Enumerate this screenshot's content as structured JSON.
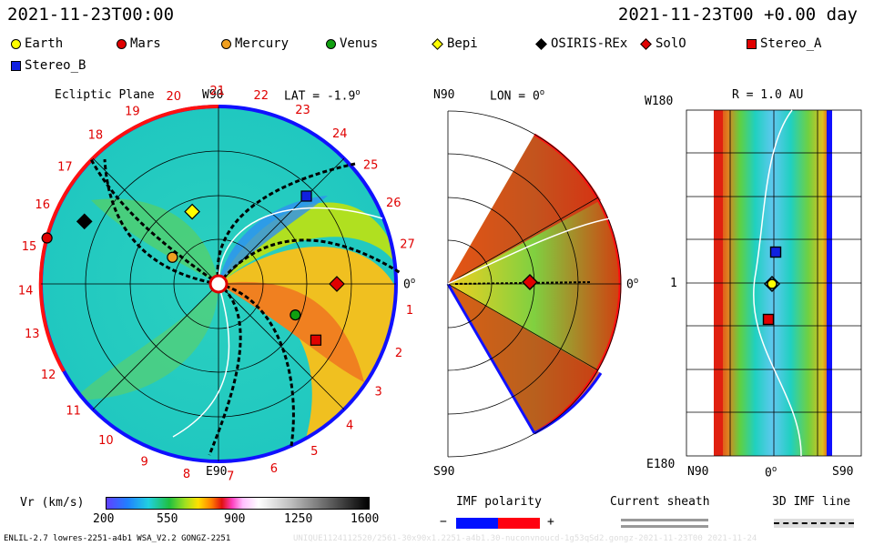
{
  "header": {
    "left_time": "2021-11-23T00:00",
    "right_time": "2021-11-23T00 +0.00 day"
  },
  "legend": [
    {
      "label": "Earth",
      "color": "#ffff00",
      "shape": "circle"
    },
    {
      "label": "Mars",
      "color": "#e00000",
      "shape": "circle"
    },
    {
      "label": "Mercury",
      "color": "#f0a020",
      "shape": "circle"
    },
    {
      "label": "Venus",
      "color": "#10a010",
      "shape": "circle"
    },
    {
      "label": "Bepi",
      "color": "#ffff00",
      "shape": "diamond"
    },
    {
      "label": "OSIRIS-REx",
      "color": "#000000",
      "shape": "diamond"
    },
    {
      "label": "SolO",
      "color": "#e00000",
      "shape": "diamond"
    },
    {
      "label": "Stereo_A",
      "color": "#e00000",
      "shape": "square"
    },
    {
      "label": "Stereo_B",
      "color": "#1020e0",
      "shape": "square"
    }
  ],
  "ecliptic": {
    "title": "Ecliptic Plane",
    "top_label": "W90",
    "bottom_label": "E90",
    "right_label": "0",
    "lat_label": "LAT = -1.9",
    "degree": "o",
    "rotation_numbers": [
      "1",
      "2",
      "3",
      "4",
      "5",
      "6",
      "7",
      "8",
      "9",
      "10",
      "11",
      "12",
      "13",
      "14",
      "15",
      "16",
      "17",
      "18",
      "19",
      "20",
      "21",
      "22",
      "23",
      "24",
      "25",
      "26",
      "27"
    ]
  },
  "meridional": {
    "top_label": "N90",
    "bottom_label": "S90",
    "lon_label": "LON = 0",
    "right_label": "0"
  },
  "radial": {
    "title": "R = 1.0 AU",
    "top_label": "W180",
    "bottom_label": "E180",
    "mid_label": "1",
    "x_labels": [
      "N90",
      "0",
      "S90"
    ]
  },
  "colorbar": {
    "label": "Vr (km/s)",
    "ticks": [
      "200",
      "550",
      "900",
      "1250",
      "1600"
    ],
    "range": [
      200,
      1600
    ]
  },
  "imf": {
    "title": "IMF polarity",
    "minus": "−",
    "plus": "+",
    "neg_color": "#0010ff",
    "pos_color": "#ff0010"
  },
  "sheath": {
    "title": "Current sheath"
  },
  "imf3d": {
    "title": "3D IMF line"
  },
  "footer": {
    "left": "ENLIL-2.7 lowres-2251-a4b1 WSA_V2.2 GONGZ-2251",
    "right": "UNIQUE1124112520/2561-30x90x1.2251-a4b1.30-nuconvnoucd-1g53qSd2.gongz-2021-11-23T00    2021-11-24"
  },
  "chart_data": {
    "type": "heatmap",
    "title": "Ecliptic Plane",
    "quantity": "Vr (km/s)",
    "range": [
      200,
      1600
    ],
    "bodies_ecliptic": [
      {
        "name": "Earth",
        "angle_deg": 0,
        "r_au": 1.0
      },
      {
        "name": "Mars",
        "angle_deg": 165,
        "r_au": 1.5
      },
      {
        "name": "Mercury",
        "angle_deg": 150,
        "r_au": 0.45
      },
      {
        "name": "Venus",
        "angle_deg": -22,
        "r_au": 0.7
      },
      {
        "name": "Bepi",
        "angle_deg": 110,
        "r_au": 0.65
      },
      {
        "name": "OSIRIS-REx",
        "angle_deg": 155,
        "r_au": 1.25
      },
      {
        "name": "SolO",
        "angle_deg": 0,
        "r_au": 1.0
      },
      {
        "name": "Stereo_A",
        "angle_deg": -30,
        "r_au": 0.95
      },
      {
        "name": "Stereo_B",
        "angle_deg": 45,
        "r_au": 1.05
      }
    ]
  }
}
